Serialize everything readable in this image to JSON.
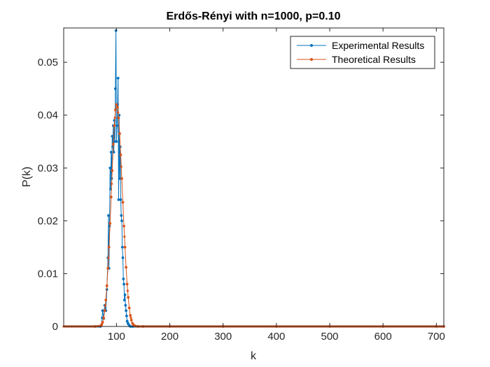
{
  "chart_data": {
    "type": "line",
    "title": "Erdős-Rényi with n=1000, p=0.10",
    "xlabel": "k",
    "ylabel": "P(k)",
    "xlim": [
      1,
      714
    ],
    "ylim": [
      0,
      0.0565
    ],
    "xticks": [
      100,
      200,
      300,
      400,
      500,
      600,
      700
    ],
    "yticks": [
      0,
      0.01,
      0.02,
      0.03,
      0.04,
      0.05
    ],
    "ytick_labels": [
      "0",
      "0.01",
      "0.02",
      "0.03",
      "0.04",
      "0.05"
    ],
    "grid": false,
    "legend": "top-right",
    "colors": {
      "experimental": "#0072BD",
      "theoretical": "#D95319",
      "axes": "#262626"
    },
    "series": [
      {
        "name": "Experimental Results",
        "color": "#0072BD",
        "x": [
          60,
          70,
          72,
          74,
          76,
          78,
          80,
          82,
          84,
          85,
          86,
          87,
          88,
          89,
          90,
          91,
          92,
          93,
          94,
          95,
          96,
          97,
          98,
          99,
          100,
          101,
          102,
          103,
          104,
          105,
          106,
          107,
          108,
          109,
          110,
          111,
          112,
          113,
          114,
          115,
          116,
          117,
          118,
          119,
          120,
          122,
          124,
          126,
          130,
          140,
          150,
          200,
          300,
          400,
          500,
          600,
          700,
          714
        ],
        "y": [
          0,
          0,
          0.0003,
          0.003,
          0.0015,
          0.004,
          0.003,
          0.007,
          0.013,
          0.021,
          0.011,
          0.019,
          0.03,
          0.026,
          0.033,
          0.028,
          0.036,
          0.034,
          0.038,
          0.033,
          0.039,
          0.035,
          0.045,
          0.056,
          0.035,
          0.038,
          0.042,
          0.047,
          0.024,
          0.04,
          0.028,
          0.034,
          0.024,
          0.021,
          0.02,
          0.015,
          0.013,
          0.009,
          0.008,
          0.005,
          0.006,
          0.004,
          0.003,
          0.002,
          0.001,
          0.0005,
          0.0002,
          0,
          0,
          0,
          0,
          0,
          0,
          0,
          0,
          0,
          0,
          0
        ]
      },
      {
        "name": "Theoretical Results",
        "color": "#D95319",
        "x": [
          60,
          70,
          72,
          74,
          76,
          78,
          80,
          82,
          84,
          86,
          88,
          90,
          92,
          94,
          96,
          98,
          100,
          102,
          104,
          106,
          108,
          110,
          112,
          114,
          116,
          118,
          120,
          122,
          124,
          126,
          128,
          130,
          132,
          135,
          140,
          150,
          200,
          300,
          400,
          500,
          600,
          700,
          714
        ],
        "y": [
          0,
          0.0001,
          0.0003,
          0.0008,
          0.0016,
          0.003,
          0.005,
          0.0077,
          0.011,
          0.015,
          0.0195,
          0.0245,
          0.0295,
          0.0345,
          0.038,
          0.041,
          0.042,
          0.0415,
          0.0395,
          0.0365,
          0.0325,
          0.028,
          0.0235,
          0.019,
          0.015,
          0.0112,
          0.008,
          0.0055,
          0.0035,
          0.0021,
          0.0012,
          0.0006,
          0.0003,
          0.0001,
          0,
          0,
          0,
          0,
          0,
          0,
          0,
          0,
          0
        ]
      }
    ]
  }
}
